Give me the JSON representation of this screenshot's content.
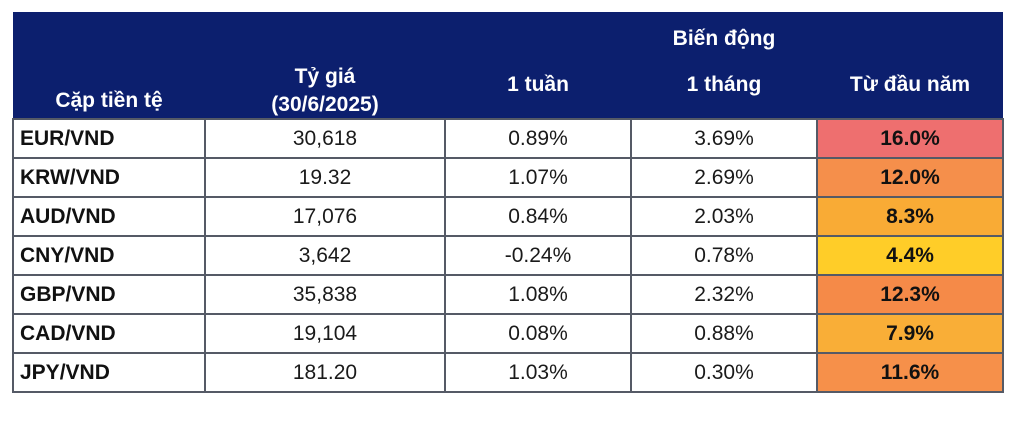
{
  "chart_data": {
    "type": "table",
    "header": {
      "pair": "Cặp tiền tệ",
      "rate_line1": "Tỷ giá",
      "rate_line2": "(30/6/2025)",
      "change_group": "Biến động",
      "week": "1 tuần",
      "month": "1 tháng",
      "ytd": "Từ đầu năm"
    },
    "rows": [
      {
        "pair": "EUR/VND",
        "rate": "30,618",
        "week": "0.89%",
        "month": "3.69%",
        "ytd": "16.0%",
        "ytd_color": "#ee6f6f"
      },
      {
        "pair": "KRW/VND",
        "rate": "19.32",
        "week": "1.07%",
        "month": "2.69%",
        "ytd": "12.0%",
        "ytd_color": "#f58f4b"
      },
      {
        "pair": "AUD/VND",
        "rate": "17,076",
        "week": "0.84%",
        "month": "2.03%",
        "ytd": "8.3%",
        "ytd_color": "#f9ab35"
      },
      {
        "pair": "CNY/VND",
        "rate": "3,642",
        "week": "-0.24%",
        "month": "0.78%",
        "ytd": "4.4%",
        "ytd_color": "#ffcd28"
      },
      {
        "pair": "GBP/VND",
        "rate": "35,838",
        "week": "1.08%",
        "month": "2.32%",
        "ytd": "12.3%",
        "ytd_color": "#f58a48"
      },
      {
        "pair": "CAD/VND",
        "rate": "19,104",
        "week": "0.08%",
        "month": "0.88%",
        "ytd": "7.9%",
        "ytd_color": "#f9ae37"
      },
      {
        "pair": "JPY/VND",
        "rate": "181.20",
        "week": "1.03%",
        "month": "0.30%",
        "ytd": "11.6%",
        "ytd_color": "#f6904a"
      }
    ]
  },
  "colors": {
    "header_bg": "#0c1f6e",
    "header_text": "#ffffff",
    "border": "#555a66"
  }
}
